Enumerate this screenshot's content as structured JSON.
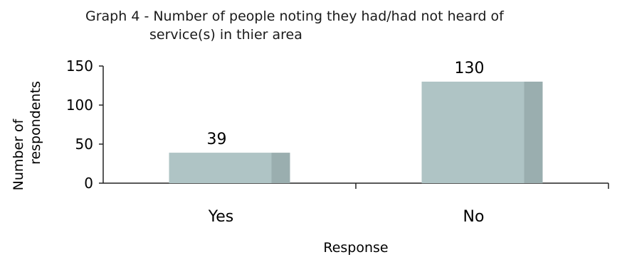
{
  "chart_data": {
    "type": "bar",
    "title_line1": "Graph 4 - Number of people noting they had/had not heard of",
    "title_line2": "service(s) in thier area",
    "xlabel": "Response",
    "ylabel_line1": "Number of",
    "ylabel_line2": "respondents",
    "categories": [
      "Yes",
      "No"
    ],
    "values": [
      39,
      130
    ],
    "ylim": [
      0,
      150
    ],
    "yticks": [
      0,
      50,
      100,
      150
    ],
    "bar_color": "#afc4c5",
    "bar_shade_color": "#9aaeaf",
    "grid": false
  }
}
